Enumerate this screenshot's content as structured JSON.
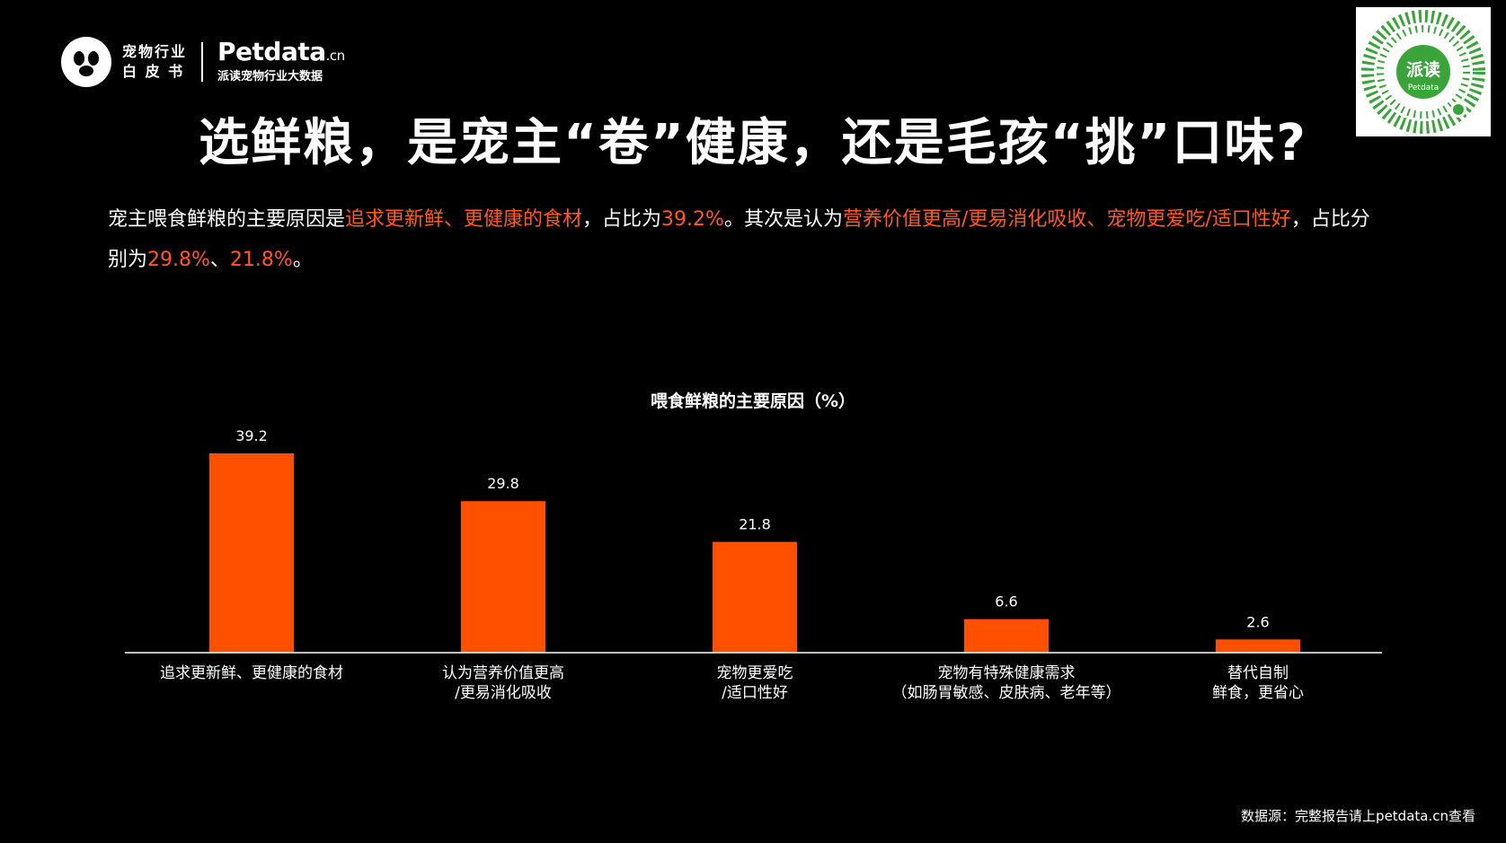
{
  "header": {
    "logo_line1": "宠物行业",
    "logo_line2": "白 皮 书",
    "brand": "Petdata",
    "brand_suffix": ".cn",
    "brand_sub": "派读宠物行业大数据",
    "qr_label": "派读",
    "qr_sublabel": "Petdata"
  },
  "title": "选鲜粮，是宠主“卷”健康，还是毛孩“挑”口味?",
  "summary": {
    "p1": "宠主喂食鲜粮的主要原因是",
    "h1": "追求更新鲜、更健康的食材",
    "p2": "，占比为",
    "h2": "39.2%",
    "p3": "。其次是认为",
    "h3": "营养价值更高/更易消化吸收、宠物更爱吃/适口性好",
    "p4": "，占比分别为",
    "h4": "29.8%",
    "p5": "、",
    "h5": "21.8%",
    "p6": "。"
  },
  "colors": {
    "accent": "#ff5a1f",
    "bar": "#ff5000",
    "background": "#000000"
  },
  "chart_data": {
    "type": "bar",
    "title": "喂食鲜粮的主要原因（%）",
    "categories": [
      [
        "追求更新鲜、更健康的食材"
      ],
      [
        "认为营养价值更高",
        "/更易消化吸收"
      ],
      [
        "宠物更爱吃",
        "/适口性好"
      ],
      [
        "宠物有特殊健康需求",
        "（如肠胃敏感、皮肤病、老年等）"
      ],
      [
        "替代自制",
        "鲜食，更省心"
      ]
    ],
    "values": [
      39.2,
      29.8,
      21.8,
      6.6,
      2.6
    ],
    "value_labels": [
      "39.2",
      "29.8",
      "21.8",
      "6.6",
      "2.6"
    ],
    "ylim": [
      0,
      45
    ],
    "grid": false,
    "legend": "none"
  },
  "source": "数据源：完整报告请上petdata.cn查看"
}
